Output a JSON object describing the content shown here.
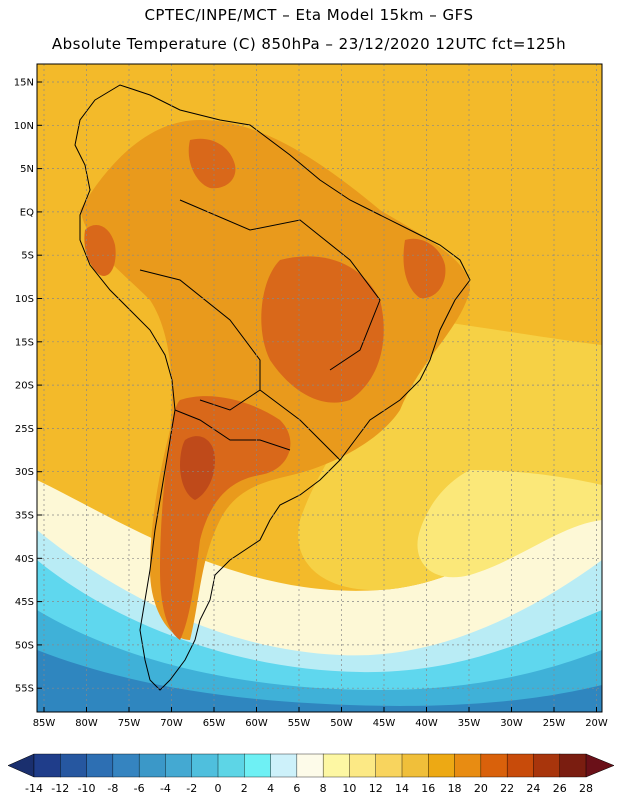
{
  "title": {
    "line1": "CPTEC/INPE/MCT –  Eta Model 15km – GFS",
    "line2": "Absolute Temperature (C) 850hPa – 23/12/2020 12UTC fct=125h"
  },
  "axes": {
    "lat_labels": [
      "15N",
      "10N",
      "5N",
      "EQ",
      "5S",
      "10S",
      "15S",
      "20S",
      "25S",
      "30S",
      "35S",
      "40S",
      "45S",
      "50S",
      "55S"
    ],
    "lon_labels": [
      "85W",
      "80W",
      "75W",
      "70W",
      "65W",
      "60W",
      "55W",
      "50W",
      "45W",
      "40W",
      "35W",
      "30W",
      "25W",
      "20W"
    ]
  },
  "colorbar": {
    "labels": [
      "-14",
      "-12",
      "-10",
      "-8",
      "-6",
      "-4",
      "-2",
      "0",
      "2",
      "4",
      "6",
      "8",
      "10",
      "12",
      "14",
      "16",
      "18",
      "20",
      "22",
      "24",
      "26",
      "28"
    ],
    "colors": [
      "#1f3d8a",
      "#2657a0",
      "#2d6fb3",
      "#3584c0",
      "#3b98c8",
      "#44a9d2",
      "#4fbfdd",
      "#5dd5e6",
      "#6ef0f4",
      "#cdf1fa",
      "#fdfbe9",
      "#fdf7a3",
      "#fce985",
      "#f8d45e",
      "#f0bf3a",
      "#eda914",
      "#e88c12",
      "#d9610b",
      "#c84b0a",
      "#a8350c",
      "#7a1d10"
    ],
    "low_arrow_color": "#1a2f6e",
    "high_arrow_color": "#6a1018"
  },
  "map_colors": {
    "ocean_base": "#f3ba2a",
    "warm": "#e99a1c",
    "hot": "#d9681a",
    "very_hot": "#bf4a1a",
    "mild": "#f6d145",
    "pale_yellow": "#fbe879",
    "cream": "#fdf8d6",
    "light_cyan": "#b9ecf5",
    "cyan": "#5fd7ee",
    "mid_blue": "#3fb1d8",
    "deep_blue": "#2f86bf",
    "coast_line": "#000000",
    "grid": "#888888"
  }
}
